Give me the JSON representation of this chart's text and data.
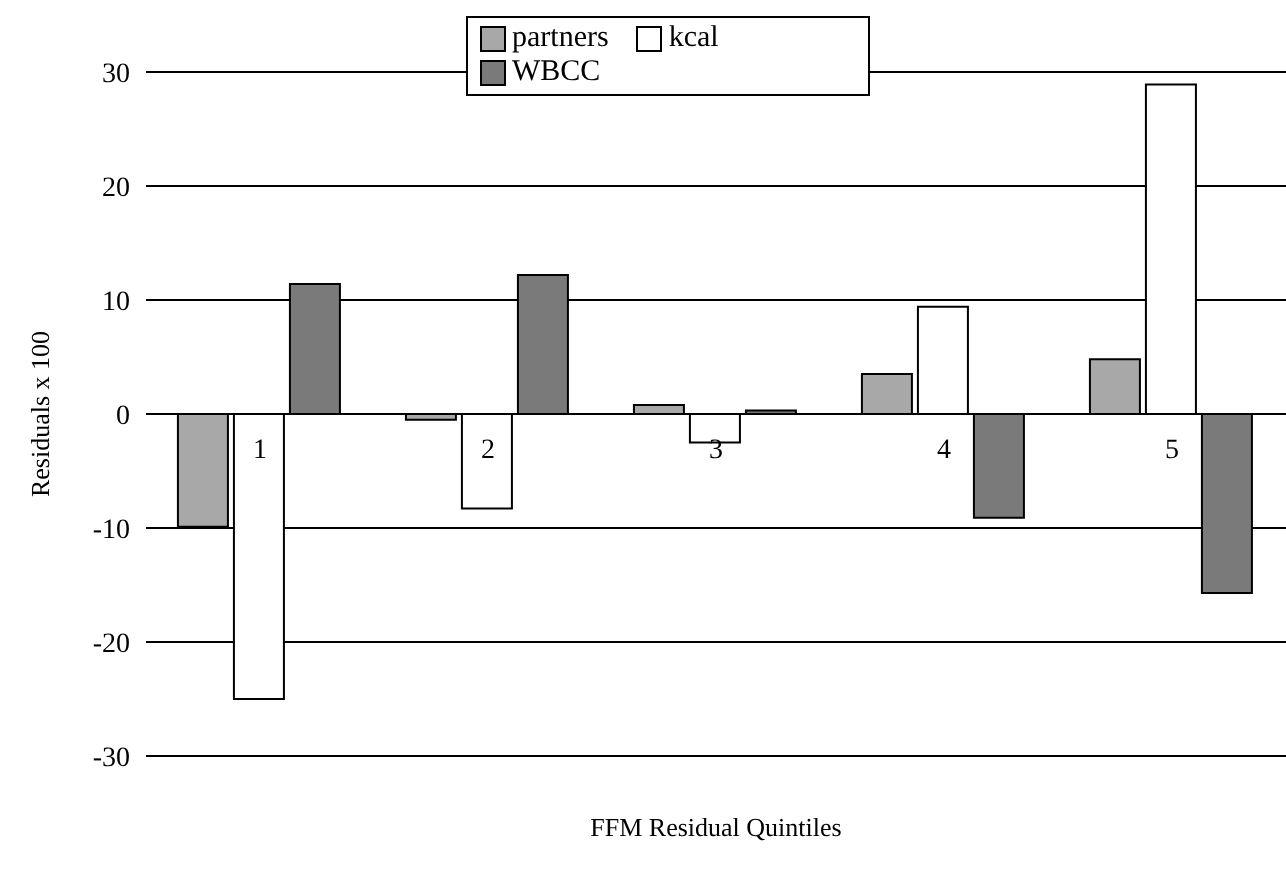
{
  "chart_data": {
    "type": "bar",
    "xlabel": "FFM Residual Quintiles",
    "ylabel": "Residuals x 100",
    "categories": [
      "1",
      "2",
      "3",
      "4",
      "5"
    ],
    "series": [
      {
        "name": "partners",
        "color": "#a8a8a8",
        "values": [
          -9.9,
          -0.5,
          0.8,
          3.5,
          4.8
        ]
      },
      {
        "name": "kcal",
        "color": "#ffffff",
        "values": [
          -25,
          -8.3,
          -2.5,
          9.4,
          28.9
        ]
      },
      {
        "name": "WBCC",
        "color": "#7a7a7a",
        "values": [
          11.4,
          12.2,
          0.3,
          -9.1,
          -15.7
        ]
      }
    ],
    "ylim": [
      -30,
      30
    ],
    "yticks": [
      -30,
      -20,
      -10,
      0,
      10,
      20,
      30
    ],
    "grid": "y",
    "legend": "top"
  }
}
